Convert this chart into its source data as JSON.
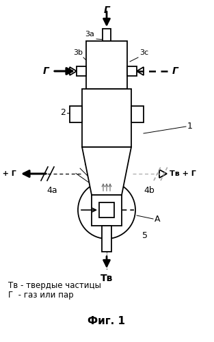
{
  "bg_color": "#ffffff",
  "line_color": "#000000",
  "gray_color": "#aaaaaa",
  "title": "Фиг. 1",
  "legend_line1": "Тв - твердые частицы",
  "legend_line2": "Г  - газ или пар",
  "label_1": "1",
  "label_2": "2",
  "label_3a": "3а",
  "label_3b": "3b",
  "label_3c": "3с",
  "label_4a": "4а",
  "label_4b": "4b",
  "label_A": "А",
  "label_5": "5",
  "label_G_top": "Г",
  "label_G_left": "Г",
  "label_G_right": "Г",
  "label_Tv": "Тв",
  "label_TvG_left": "Тв + Г",
  "label_TvG_right": "Тв + Г"
}
